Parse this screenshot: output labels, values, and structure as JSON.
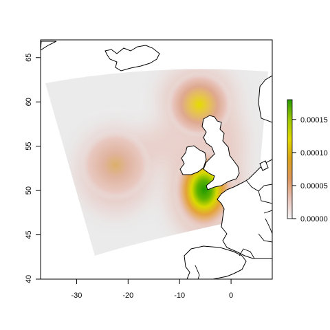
{
  "chart_data": {
    "type": "heatmap",
    "xlim": [
      -37,
      8
    ],
    "ylim": [
      40,
      67
    ],
    "x_ticks": [
      -30,
      -20,
      -10,
      0
    ],
    "y_ticks": [
      40,
      45,
      50,
      55,
      60,
      65
    ],
    "x_tick_labels": [
      "-30",
      "-20",
      "-10",
      "0"
    ],
    "y_tick_labels": [
      "40",
      "45",
      "50",
      "55",
      "60",
      "65"
    ],
    "colorbar": {
      "range": [
        0,
        0.00018
      ],
      "ticks": [
        0,
        5e-05,
        0.0001,
        0.00015
      ],
      "tick_labels": [
        "0.00000",
        "0.00005",
        "0.00010",
        "0.00015"
      ],
      "colors": [
        "#f3f3f3",
        "#e8c2b8",
        "#dc9760",
        "#d9a31a",
        "#e1d700",
        "#9dc800",
        "#2a9a00"
      ]
    },
    "background_color": "#ebebeb",
    "hotspots": [
      {
        "lon": -7,
        "lat": 49.5,
        "peak": 0.00018
      },
      {
        "lon": -6,
        "lat": 59.5,
        "peak": 8.5e-05
      },
      {
        "lon": -22.5,
        "lat": 53,
        "peak": 6e-05
      },
      {
        "lon": -2,
        "lat": 49.8,
        "peak": 7e-05
      }
    ],
    "grid": false,
    "legend": "right"
  }
}
